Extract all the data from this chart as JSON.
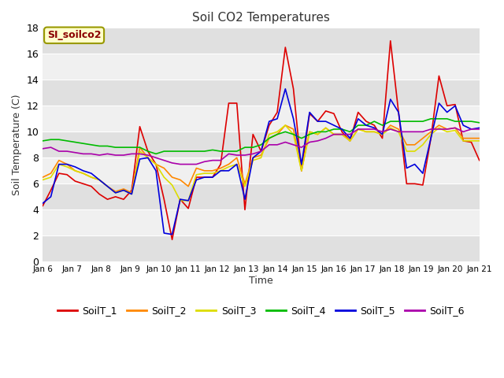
{
  "title": "Soil CO2 Temperatures",
  "xlabel": "Time",
  "ylabel": "Soil Temperature (C)",
  "ylim": [
    0,
    18
  ],
  "annotation": "SI_soilco2",
  "figure_bg": "#ffffff",
  "plot_bg": "#ffffff",
  "band_color_dark": "#e0e0e0",
  "band_color_light": "#f0f0f0",
  "x_labels": [
    "Jan 6",
    "Jan 7",
    "Jan 8",
    "Jan 9",
    "Jan 10",
    "Jan 11",
    "Jan 12",
    "Jan 13",
    "Jan 14",
    "Jan 15",
    "Jan 16",
    "Jan 17",
    "Jan 18",
    "Jan 19",
    "Jan 20",
    "Jan 21"
  ],
  "colors": {
    "SoilT_1": "#dd0000",
    "SoilT_2": "#ff8800",
    "SoilT_3": "#dddd00",
    "SoilT_4": "#00bb00",
    "SoilT_5": "#0000dd",
    "SoilT_6": "#aa00aa"
  },
  "series": {
    "SoilT_1": [
      4.3,
      5.5,
      6.8,
      6.7,
      6.2,
      6.0,
      5.8,
      5.2,
      4.8,
      5.0,
      4.8,
      5.5,
      10.4,
      8.5,
      7.5,
      4.8,
      1.7,
      4.8,
      4.1,
      6.5,
      6.5,
      6.5,
      7.5,
      12.2,
      12.2,
      4.0,
      9.8,
      8.5,
      10.5,
      11.5,
      16.5,
      13.3,
      7.0,
      11.4,
      10.8,
      11.6,
      11.4,
      10.0,
      9.3,
      11.5,
      10.8,
      10.5,
      9.5,
      17.0,
      11.5,
      6.0,
      6.0,
      5.9,
      9.5,
      14.3,
      12.0,
      12.1,
      9.3,
      9.2,
      7.8
    ],
    "SoilT_2": [
      6.5,
      6.8,
      7.8,
      7.5,
      7.0,
      6.8,
      6.5,
      6.3,
      5.8,
      5.4,
      5.6,
      5.3,
      8.8,
      8.0,
      7.5,
      7.2,
      6.5,
      6.3,
      5.8,
      7.2,
      7.0,
      7.0,
      7.2,
      7.5,
      8.0,
      6.0,
      8.0,
      8.2,
      9.5,
      9.8,
      10.5,
      10.2,
      7.0,
      10.0,
      9.8,
      10.3,
      9.8,
      9.8,
      9.3,
      10.2,
      10.0,
      10.0,
      9.8,
      10.5,
      10.2,
      9.0,
      9.0,
      9.5,
      10.0,
      10.5,
      10.2,
      10.3,
      9.5,
      9.5,
      9.5
    ],
    "SoilT_3": [
      6.3,
      6.5,
      7.5,
      7.3,
      7.0,
      6.8,
      6.5,
      6.3,
      5.8,
      5.3,
      5.5,
      5.2,
      8.5,
      8.0,
      7.5,
      6.5,
      5.9,
      4.7,
      4.7,
      6.7,
      6.8,
      6.8,
      7.0,
      7.3,
      7.5,
      5.8,
      7.8,
      8.0,
      9.8,
      10.0,
      10.5,
      9.8,
      7.0,
      10.0,
      9.8,
      10.3,
      9.8,
      9.8,
      9.3,
      10.2,
      10.0,
      10.0,
      9.8,
      10.3,
      10.0,
      8.5,
      8.5,
      9.0,
      9.8,
      10.3,
      10.0,
      10.1,
      9.3,
      9.3,
      9.3
    ],
    "SoilT_4": [
      9.3,
      9.4,
      9.4,
      9.3,
      9.2,
      9.1,
      9.0,
      8.9,
      8.9,
      8.8,
      8.8,
      8.8,
      8.8,
      8.5,
      8.3,
      8.5,
      8.5,
      8.5,
      8.5,
      8.5,
      8.5,
      8.6,
      8.5,
      8.5,
      8.5,
      8.8,
      8.8,
      9.0,
      9.5,
      9.8,
      10.0,
      9.8,
      9.5,
      9.8,
      10.0,
      10.0,
      10.2,
      10.2,
      10.0,
      10.5,
      10.5,
      10.8,
      10.5,
      10.8,
      10.8,
      10.8,
      10.8,
      10.8,
      11.0,
      11.0,
      11.0,
      10.8,
      10.8,
      10.8,
      10.7
    ],
    "SoilT_5": [
      4.5,
      5.0,
      7.5,
      7.5,
      7.3,
      7.0,
      6.8,
      6.3,
      5.8,
      5.3,
      5.5,
      5.2,
      7.9,
      8.0,
      7.0,
      2.2,
      2.1,
      4.8,
      4.7,
      6.3,
      6.5,
      6.5,
      7.0,
      7.0,
      7.5,
      4.8,
      8.0,
      8.5,
      10.8,
      11.0,
      13.3,
      11.0,
      7.5,
      11.5,
      10.8,
      10.8,
      10.5,
      10.2,
      9.5,
      11.0,
      10.5,
      10.3,
      9.8,
      12.5,
      11.5,
      7.2,
      7.5,
      6.8,
      9.5,
      12.2,
      11.5,
      12.0,
      10.5,
      10.2,
      10.3
    ],
    "SoilT_6": [
      8.7,
      8.8,
      8.5,
      8.5,
      8.4,
      8.3,
      8.3,
      8.2,
      8.3,
      8.2,
      8.2,
      8.3,
      8.3,
      8.2,
      8.0,
      7.8,
      7.6,
      7.5,
      7.5,
      7.5,
      7.7,
      7.8,
      7.8,
      8.3,
      8.2,
      8.2,
      8.3,
      8.5,
      9.0,
      9.0,
      9.2,
      9.0,
      8.8,
      9.2,
      9.3,
      9.5,
      9.8,
      9.8,
      9.8,
      10.2,
      10.2,
      10.2,
      10.0,
      10.2,
      10.0,
      10.0,
      10.0,
      10.0,
      10.2,
      10.2,
      10.2,
      10.3,
      10.0,
      10.2,
      10.2
    ]
  }
}
